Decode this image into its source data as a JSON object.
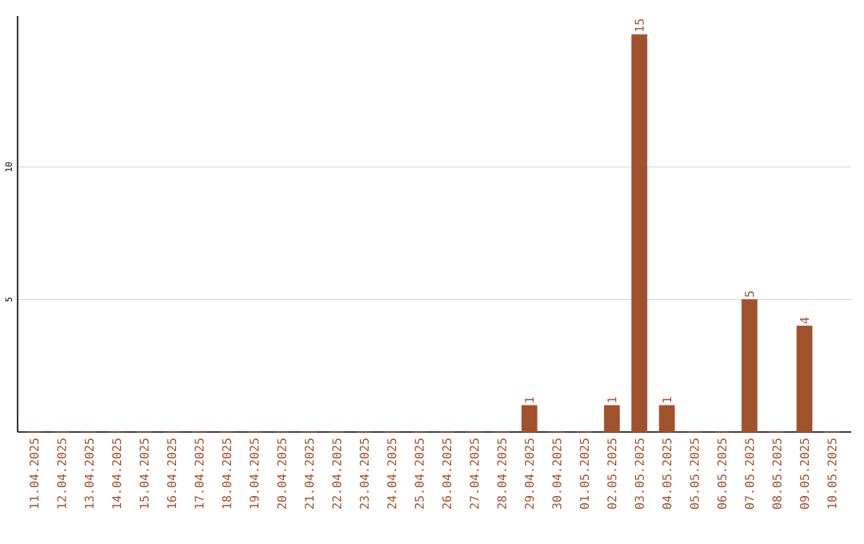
{
  "chart_data": {
    "type": "bar",
    "categories": [
      "11.04.2025",
      "12.04.2025",
      "13.04.2025",
      "14.04.2025",
      "15.04.2025",
      "16.04.2025",
      "17.04.2025",
      "18.04.2025",
      "19.04.2025",
      "20.04.2025",
      "21.04.2025",
      "22.04.2025",
      "23.04.2025",
      "24.04.2025",
      "25.04.2025",
      "26.04.2025",
      "27.04.2025",
      "28.04.2025",
      "29.04.2025",
      "30.04.2025",
      "01.05.2025",
      "02.05.2025",
      "03.05.2025",
      "04.05.2025",
      "05.05.2025",
      "06.05.2025",
      "07.05.2025",
      "08.05.2025",
      "09.05.2025",
      "10.05.2025"
    ],
    "values": [
      0,
      0,
      0,
      0,
      0,
      0,
      0,
      0,
      0,
      0,
      0,
      0,
      0,
      0,
      0,
      0,
      0,
      0,
      1,
      0,
      0,
      1,
      15,
      1,
      0,
      0,
      5,
      0,
      4,
      0
    ],
    "value_labels": [
      null,
      null,
      null,
      null,
      null,
      null,
      null,
      null,
      null,
      null,
      null,
      null,
      null,
      null,
      null,
      null,
      null,
      null,
      "1",
      null,
      null,
      "1",
      "15",
      "1",
      null,
      null,
      "5",
      null,
      "4",
      null
    ],
    "color": "#a0522d",
    "ylim": [
      0,
      15.7
    ],
    "yticks": [
      5,
      10
    ],
    "grid": "y",
    "legend": false
  }
}
